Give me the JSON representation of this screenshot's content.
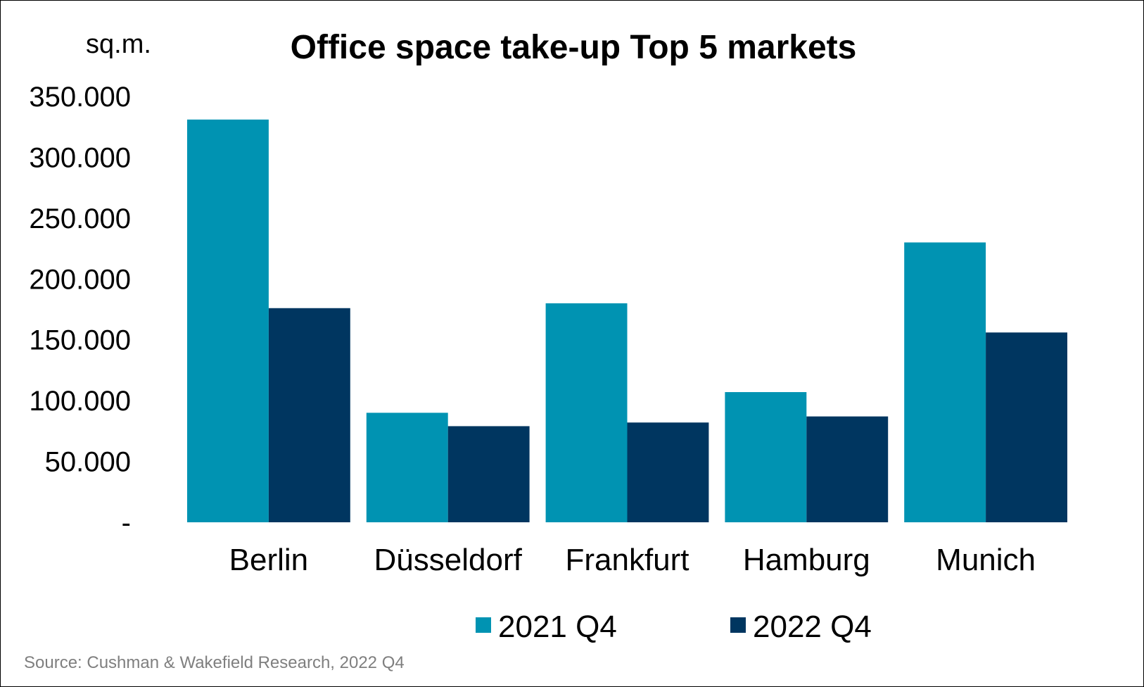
{
  "chart_data": {
    "type": "bar",
    "title": "Office space take-up Top 5 markets",
    "ylabel": "sq.m.",
    "xlabel": "",
    "categories": [
      "Berlin",
      "Düsseldorf",
      "Frankfurt",
      "Hamburg",
      "Munich"
    ],
    "series": [
      {
        "name": "2021 Q4",
        "color": "#0093b2",
        "values": [
          331000,
          90000,
          180000,
          107000,
          230000
        ]
      },
      {
        "name": "2022 Q4",
        "color": "#003660",
        "values": [
          176000,
          79000,
          82000,
          87000,
          156000
        ]
      }
    ],
    "ylim": [
      0,
      350000
    ],
    "yticks": [
      {
        "value": 0,
        "label": "-"
      },
      {
        "value": 50000,
        "label": "50.000"
      },
      {
        "value": 100000,
        "label": "100.000"
      },
      {
        "value": 150000,
        "label": "150.000"
      },
      {
        "value": 200000,
        "label": "200.000"
      },
      {
        "value": 250000,
        "label": "250.000"
      },
      {
        "value": 300000,
        "label": "300.000"
      },
      {
        "value": 350000,
        "label": "350.000"
      }
    ],
    "grid": false,
    "legend_position": "bottom",
    "source": "Source: Cushman & Wakefield Research, 2022 Q4"
  }
}
